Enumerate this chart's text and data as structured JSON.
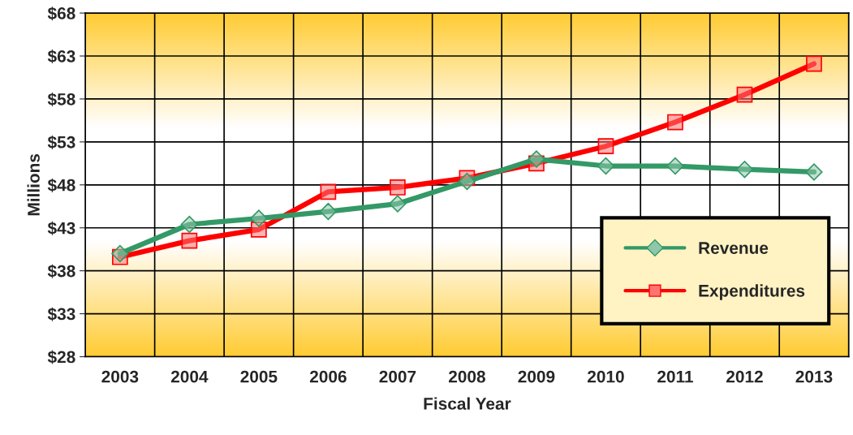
{
  "chart_data": {
    "type": "line",
    "xlabel": "Fiscal Year",
    "ylabel": "Millions",
    "categories": [
      "2003",
      "2004",
      "2005",
      "2006",
      "2007",
      "2008",
      "2009",
      "2010",
      "2011",
      "2012",
      "2013"
    ],
    "series": [
      {
        "name": "Revenue",
        "color": "#339966",
        "marker": "diamond",
        "values": [
          40.0,
          43.4,
          44.1,
          44.9,
          45.8,
          48.4,
          51.0,
          50.2,
          50.2,
          49.8,
          49.5
        ]
      },
      {
        "name": "Expenditures",
        "color": "#ff0000",
        "marker": "square",
        "values": [
          39.6,
          41.5,
          42.8,
          47.2,
          47.7,
          48.8,
          50.5,
          52.5,
          55.3,
          58.5,
          62.1
        ]
      }
    ],
    "ylim": [
      28,
      68
    ],
    "yticks": [
      {
        "value": 28,
        "label": "$28"
      },
      {
        "value": 33,
        "label": "$33"
      },
      {
        "value": 38,
        "label": "$38"
      },
      {
        "value": 43,
        "label": "$43"
      },
      {
        "value": 48,
        "label": "$48"
      },
      {
        "value": 53,
        "label": "$53"
      },
      {
        "value": 58,
        "label": "$58"
      },
      {
        "value": 63,
        "label": "$63"
      },
      {
        "value": 68,
        "label": "$68"
      }
    ],
    "grid": true,
    "legend": "right",
    "line_style": "solid"
  }
}
